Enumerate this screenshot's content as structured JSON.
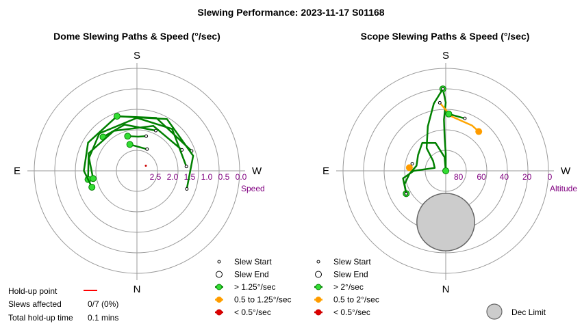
{
  "title": "Slewing Performance: 2023-11-17 S01168",
  "colors": {
    "fast": "#008000",
    "medium": "#ffa500",
    "slow": "#cc0000",
    "fast_marker": "#33dd33",
    "medium_marker": "#ff9900",
    "slow_marker": "#dd0000",
    "ring": "#999999",
    "axis_label": "#800080",
    "dec_limit_fill": "#cccccc",
    "dec_limit_edge": "#666666",
    "holdup": "#ff0000"
  },
  "chart_data": [
    {
      "type": "polar-line",
      "title": "Dome Slewing Paths & Speed (°/sec)",
      "directions": {
        "top": "S",
        "bottom": "N",
        "left": "E",
        "right": "W"
      },
      "radial_axis": {
        "label": "Speed",
        "ticks": [
          "2.5",
          "2.0",
          "1.5",
          "1.0",
          "0.5",
          "0.0"
        ],
        "range": [
          3.0,
          0.0
        ],
        "direction": "center-to-edge decreasing"
      },
      "holdup_points": [
        {
          "az": -60,
          "r": 2.7
        }
      ],
      "series": [
        {
          "category": "fast",
          "points": [
            [
              -15,
              1.95
            ],
            [
              -2,
              2.0
            ],
            [
              15,
              1.95
            ]
          ]
        },
        {
          "category": "fast",
          "points": [
            [
              -25,
              2.3
            ],
            [
              15,
              2.2
            ]
          ]
        },
        {
          "category": "fast",
          "points": [
            [
              -25,
              1.7
            ],
            [
              15,
              1.6
            ],
            [
              45,
              1.6
            ]
          ]
        },
        {
          "category": "fast",
          "points": [
            [
              -65,
              1.55
            ],
            [
              -20,
              1.6
            ],
            [
              30,
              1.65
            ],
            [
              70,
              1.5
            ],
            [
              100,
              1.55
            ]
          ]
        },
        {
          "category": "fast",
          "points": [
            [
              -85,
              1.55
            ],
            [
              -40,
              1.4
            ],
            [
              0,
              1.45
            ],
            [
              45,
              1.45
            ],
            [
              75,
              1.55
            ],
            [
              100,
              1.7
            ]
          ]
        },
        {
          "category": "fast",
          "points": [
            [
              -70,
              1.3
            ],
            [
              -20,
              1.35
            ],
            [
              20,
              1.3
            ],
            [
              60,
              1.35
            ],
            [
              90,
              1.45
            ],
            [
              110,
              1.6
            ]
          ]
        },
        {
          "category": "fast",
          "points": [
            [
              -110,
              1.45
            ],
            [
              -75,
              1.3
            ],
            [
              -30,
              1.25
            ],
            [
              20,
              1.3
            ]
          ]
        }
      ]
    },
    {
      "type": "polar-line",
      "title": "Scope Slewing Paths & Speed (°/sec)",
      "directions": {
        "top": "S",
        "bottom": "N",
        "left": "E",
        "right": "W"
      },
      "radial_axis": {
        "label": "Altitude",
        "ticks": [
          "80",
          "60",
          "40",
          "20",
          "0"
        ],
        "range": [
          90,
          0
        ]
      },
      "dec_limit": {
        "az": 180,
        "alt": 45,
        "radius_deg": 11
      },
      "series": [
        {
          "category": "fast",
          "points": [
            [
              0,
              90
            ],
            [
              0,
              75
            ],
            [
              2,
              60
            ],
            [
              2,
              45
            ],
            [
              0,
              30
            ],
            [
              2,
              18
            ]
          ]
        },
        {
          "category": "fast",
          "points": [
            [
              2,
              18
            ],
            [
              10,
              30
            ],
            [
              22,
              48
            ],
            [
              40,
              64
            ],
            [
              52,
              76
            ],
            [
              75,
              80
            ],
            [
              90,
              62
            ],
            [
              100,
              52
            ],
            [
              120,
              50
            ]
          ]
        },
        {
          "category": "fast",
          "points": [
            [
              120,
              50
            ],
            [
              108,
              52
            ],
            [
              95,
              58
            ],
            [
              80,
              64
            ],
            [
              60,
              62
            ],
            [
              40,
              58
            ],
            [
              20,
              64
            ],
            [
              5,
              78
            ],
            [
              0,
              90
            ]
          ]
        },
        {
          "category": "medium",
          "points": [
            [
              5,
              30
            ],
            [
              -6,
              42
            ],
            [
              -30,
              44
            ],
            [
              -40,
              45
            ]
          ]
        },
        {
          "category": "medium",
          "points": [
            [
              78,
              60
            ],
            [
              85,
              58
            ]
          ]
        },
        {
          "category": "fast",
          "points": [
            [
              -20,
              41
            ],
            [
              -3,
              40
            ]
          ]
        }
      ]
    }
  ],
  "dome_legend": [
    {
      "kind": "start",
      "label": "Slew Start"
    },
    {
      "kind": "end",
      "label": "Slew End"
    },
    {
      "kind": "fast",
      "label": "> 1.25°/sec"
    },
    {
      "kind": "medium",
      "label": "0.5 to 1.25°/sec"
    },
    {
      "kind": "slow",
      "label": "< 0.5°/sec"
    }
  ],
  "scope_legend": [
    {
      "kind": "start",
      "label": "Slew Start"
    },
    {
      "kind": "end",
      "label": "Slew End"
    },
    {
      "kind": "fast",
      "label": "> 2°/sec"
    },
    {
      "kind": "medium",
      "label": "0.5 to 2°/sec"
    },
    {
      "kind": "slow",
      "label": "< 0.5°/sec"
    }
  ],
  "stats": {
    "holdup_label": "Hold-up point",
    "slews_label": "Slews affected",
    "slews_value": "0/7 (0%)",
    "time_label": "Total hold-up time",
    "time_value": "0.1 mins"
  },
  "dec_limit_label": "Dec Limit"
}
